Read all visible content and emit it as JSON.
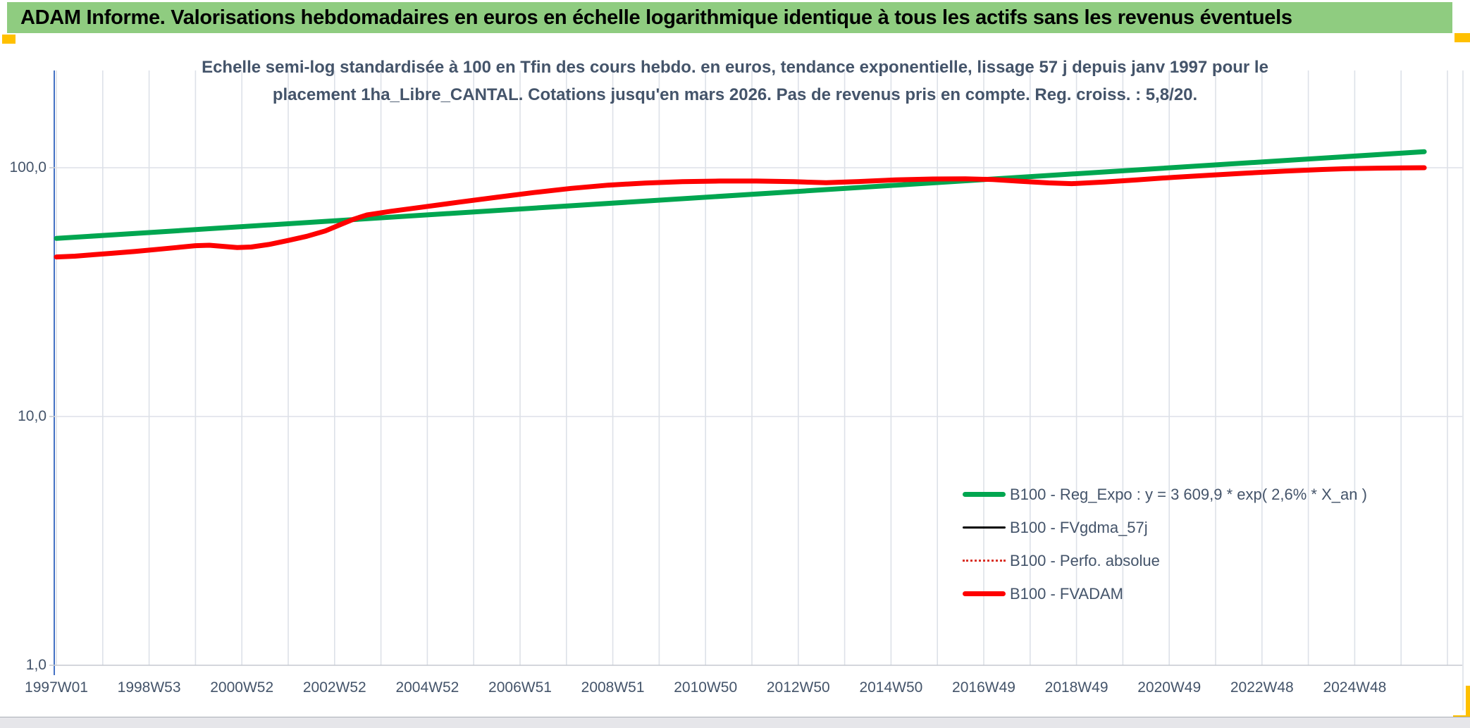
{
  "window": {
    "title": "ADAM Informe. Valorisations hebdomadaires en euros en échelle logarithmique identique à tous les actifs sans les revenus éventuels"
  },
  "chart": {
    "title_line1": "Echelle semi-log standardisée à 100 en Tfin des cours hebdo. en euros, tendance exponentielle, lissage 57 j depuis janv 1997 pour le",
    "title_line2": "placement 1ha_Libre_CANTAL. Cotations jusqu'en mars 2026. Pas de revenus pris en compte. Reg. croiss. : 5,8/20."
  },
  "colors": {
    "banner_green": "#8FCC80",
    "gold_marker": "#FFC000",
    "text_blue_gray": "#44546A",
    "gridline": "#DDE1E8",
    "y_axis_line": "#4472C4",
    "x_axis_line": "#C5C9D0",
    "series_green": "#00A650",
    "series_red": "#FE0000",
    "series_black": "#000000",
    "series_dotted_red": "#D93025"
  },
  "chart_data": {
    "type": "line",
    "x_scale": "linear-years",
    "y_scale": "log10",
    "x_domain": [
      1996.95,
      2027.3
    ],
    "y_domain": [
      1,
      235
    ],
    "gridlines": {
      "vertical_every_years": 1,
      "horizontal_at": [
        100,
        10,
        1
      ]
    },
    "legend_position": "inside-right-lower",
    "y_ticks": [
      {
        "value": 100,
        "label": "100,0"
      },
      {
        "value": 10,
        "label": "10,0"
      },
      {
        "value": 1,
        "label": "1,0"
      }
    ],
    "x_ticks": [
      {
        "year": 1997,
        "label": "1997W01"
      },
      {
        "year": 1999,
        "label": "1998W53"
      },
      {
        "year": 2001,
        "label": "2000W52"
      },
      {
        "year": 2003,
        "label": "2002W52"
      },
      {
        "year": 2005,
        "label": "2004W52"
      },
      {
        "year": 2007,
        "label": "2006W51"
      },
      {
        "year": 2009,
        "label": "2008W51"
      },
      {
        "year": 2011,
        "label": "2010W50"
      },
      {
        "year": 2013,
        "label": "2012W50"
      },
      {
        "year": 2015,
        "label": "2014W50"
      },
      {
        "year": 2017,
        "label": "2016W49"
      },
      {
        "year": 2019,
        "label": "2018W49"
      },
      {
        "year": 2021,
        "label": "2020W49"
      },
      {
        "year": 2023,
        "label": "2022W48"
      },
      {
        "year": 2025,
        "label": "2024W48"
      }
    ],
    "series": [
      {
        "name": "B100 - Reg_Expo : y = 3 609,9 * exp( 2,6% *  X_an )",
        "slug": "reg-expo",
        "color": "#00A650",
        "line_width": 7,
        "style": "solid",
        "points": [
          [
            1997.0,
            52.0
          ],
          [
            2026.5,
            116.0
          ]
        ]
      },
      {
        "name": "B100 - FVgdma_57j",
        "slug": "fvgdma-57j",
        "color": "#000000",
        "line_width": 3,
        "style": "solid",
        "points_same_as": "B100 - FVADAM",
        "note": "coincides with B100 - FVADAM (hidden underneath)"
      },
      {
        "name": "B100 - Perfo. absolue",
        "slug": "perfo-absolue",
        "color": "#D93025",
        "line_width": 3,
        "style": "dotted",
        "points_same_as": "B100 - FVADAM",
        "note": "coincides with B100 - FVADAM (hidden underneath)"
      },
      {
        "name": "B100 - FVADAM",
        "slug": "fvadam",
        "color": "#FE0000",
        "line_width": 7,
        "style": "solid",
        "points": [
          [
            1997.0,
            43.8
          ],
          [
            1997.4,
            44.1
          ],
          [
            1997.8,
            44.7
          ],
          [
            1998.2,
            45.3
          ],
          [
            1998.7,
            46.1
          ],
          [
            1999.2,
            47.0
          ],
          [
            1999.6,
            47.8
          ],
          [
            2000.0,
            48.6
          ],
          [
            2000.3,
            48.8
          ],
          [
            2000.6,
            48.3
          ],
          [
            2000.9,
            47.8
          ],
          [
            2001.2,
            48.0
          ],
          [
            2001.6,
            49.2
          ],
          [
            2002.0,
            51.0
          ],
          [
            2002.4,
            53.0
          ],
          [
            2002.8,
            55.7
          ],
          [
            2003.1,
            58.8
          ],
          [
            2003.4,
            62.0
          ],
          [
            2003.7,
            64.6
          ],
          [
            2004.2,
            66.8
          ],
          [
            2004.9,
            69.5
          ],
          [
            2005.7,
            72.8
          ],
          [
            2006.5,
            76.1
          ],
          [
            2007.3,
            79.5
          ],
          [
            2008.1,
            82.6
          ],
          [
            2008.9,
            85.1
          ],
          [
            2009.7,
            86.8
          ],
          [
            2010.5,
            87.9
          ],
          [
            2011.3,
            88.4
          ],
          [
            2012.1,
            88.4
          ],
          [
            2012.9,
            87.9
          ],
          [
            2013.6,
            87.0
          ],
          [
            2014.3,
            88.0
          ],
          [
            2015.1,
            89.4
          ],
          [
            2015.9,
            90.1
          ],
          [
            2016.6,
            90.2
          ],
          [
            2017.2,
            89.7
          ],
          [
            2017.8,
            88.2
          ],
          [
            2018.4,
            86.9
          ],
          [
            2018.9,
            86.3
          ],
          [
            2019.6,
            87.6
          ],
          [
            2020.3,
            89.4
          ],
          [
            2021.1,
            91.5
          ],
          [
            2021.9,
            93.4
          ],
          [
            2022.7,
            95.2
          ],
          [
            2023.5,
            96.9
          ],
          [
            2024.3,
            98.4
          ],
          [
            2024.9,
            99.2
          ],
          [
            2025.5,
            99.6
          ],
          [
            2026.0,
            99.8
          ],
          [
            2026.5,
            100.0
          ]
        ]
      }
    ]
  }
}
